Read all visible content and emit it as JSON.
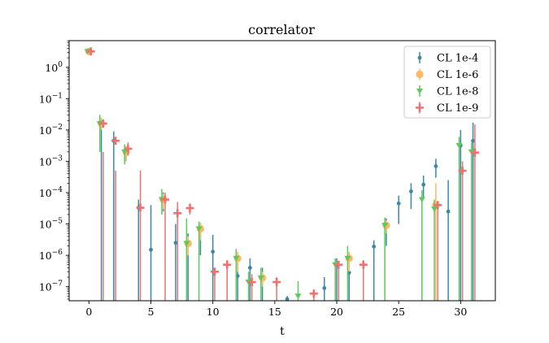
{
  "chart_data": {
    "type": "scatter",
    "title": "correlator",
    "xlabel": "t",
    "ylabel": "",
    "xlim": [
      -1.6,
      32.8
    ],
    "ylim_log10": [
      -7.45,
      0.85
    ],
    "yscale": "log",
    "grid": false,
    "legend_position": "top-right",
    "x_ticks": [
      0,
      5,
      10,
      15,
      20,
      25,
      30
    ],
    "x_tick_labels": [
      "0",
      "5",
      "10",
      "15",
      "20",
      "25",
      "30"
    ],
    "y_ticks_log10": [
      0,
      -1,
      -2,
      -3,
      -4,
      -5,
      -6,
      -7
    ],
    "y_tick_labels": [
      "10^0",
      "10^-1",
      "10^-2",
      "10^-3",
      "10^-4",
      "10^-5",
      "10^-6",
      "10^-7"
    ],
    "series": [
      {
        "name": "CL 1e-4",
        "color": "#3a88a8",
        "marker": "circle-small",
        "offset": 0.0,
        "points": [
          {
            "x": 0,
            "y": 3.2,
            "lo": 3.0,
            "hi": 3.4
          },
          {
            "x": 1,
            "y": 0.016,
            "lo": 1e-08,
            "hi": 0.02
          },
          {
            "x": 2,
            "y": 0.0045,
            "lo": 1e-08,
            "hi": 0.009
          },
          {
            "x": 3,
            "y": 0.002,
            "lo": 0.001,
            "hi": 0.003
          },
          {
            "x": 4,
            "y": 3.3e-05,
            "lo": 1e-08,
            "hi": 6e-05
          },
          {
            "x": 5,
            "y": 1.5e-06,
            "lo": 1e-08,
            "hi": 4e-05
          },
          {
            "x": 6,
            "y": 6e-05,
            "lo": 2.5e-05,
            "hi": 0.0001
          },
          {
            "x": 7,
            "y": 2.5e-06,
            "lo": 1e-08,
            "hi": 1e-05
          },
          {
            "x": 8,
            "y": 2.4e-06,
            "lo": 1e-08,
            "hi": 5e-06
          },
          {
            "x": 9,
            "y": 7e-06,
            "lo": 1e-06,
            "hi": 1e-05
          },
          {
            "x": 10,
            "y": 1.3e-06,
            "lo": 1e-08,
            "hi": 4.5e-06
          },
          {
            "x": 12,
            "y": 2.2e-07,
            "lo": 1e-08,
            "hi": 1e-06
          },
          {
            "x": 13,
            "y": 4e-07,
            "lo": 1e-08,
            "hi": 8e-07
          },
          {
            "x": 14,
            "y": 2e-07,
            "lo": 1e-08,
            "hi": 4e-07
          },
          {
            "x": 16,
            "y": 4e-08,
            "lo": 1e-08,
            "hi": 5e-08
          },
          {
            "x": 19,
            "y": 9e-08,
            "lo": 1e-08,
            "hi": 2e-07
          },
          {
            "x": 20,
            "y": 5e-07,
            "lo": 1e-08,
            "hi": 8e-07
          },
          {
            "x": 21,
            "y": 2.8e-07,
            "lo": 1e-08,
            "hi": 1e-06
          },
          {
            "x": 23,
            "y": 1.9e-06,
            "lo": 1e-08,
            "hi": 3e-06
          },
          {
            "x": 24,
            "y": 9e-06,
            "lo": 2e-06,
            "hi": 1.5e-05
          },
          {
            "x": 25,
            "y": 4.5e-05,
            "lo": 1e-05,
            "hi": 8e-05
          },
          {
            "x": 26,
            "y": 0.00011,
            "lo": 3e-05,
            "hi": 0.0002
          },
          {
            "x": 27,
            "y": 0.00018,
            "lo": 7e-05,
            "hi": 0.00035
          },
          {
            "x": 28,
            "y": 0.0007,
            "lo": 0.0003,
            "hi": 0.0012
          },
          {
            "x": 29,
            "y": 2.5e-05,
            "lo": 1e-08,
            "hi": 0.00025
          },
          {
            "x": 30,
            "y": 0.0032,
            "lo": 1e-08,
            "hi": 0.01
          },
          {
            "x": 31,
            "y": 0.0045,
            "lo": 1e-08,
            "hi": 0.017
          }
        ]
      },
      {
        "name": "CL 1e-6",
        "color": "#fdb863",
        "marker": "circle-large",
        "offset": 0.0,
        "points": [
          {
            "x": 0,
            "y": 3.2,
            "lo": 3.0,
            "hi": 3.4
          },
          {
            "x": 1,
            "y": 0.016,
            "lo": 0.01,
            "hi": 0.025
          },
          {
            "x": 3,
            "y": 0.002,
            "lo": 0.001,
            "hi": 0.003
          },
          {
            "x": 6,
            "y": 6e-05,
            "lo": 3e-05,
            "hi": 9e-05
          },
          {
            "x": 8,
            "y": 2.4e-06,
            "lo": 1e-06,
            "hi": 4e-06
          },
          {
            "x": 9,
            "y": 7e-06,
            "lo": 3e-06,
            "hi": 1.1e-05
          },
          {
            "x": 12,
            "y": 8e-07,
            "lo": 3e-07,
            "hi": 1.3e-06
          },
          {
            "x": 14,
            "y": 1.9e-07,
            "lo": 1e-07,
            "hi": 3e-07
          },
          {
            "x": 21,
            "y": 8e-07,
            "lo": 3e-07,
            "hi": 1.3e-06
          },
          {
            "x": 24,
            "y": 9e-06,
            "lo": 5e-06,
            "hi": 1.3e-05
          },
          {
            "x": 28,
            "y": 4e-05,
            "lo": 1e-08,
            "hi": 0.0002
          }
        ]
      },
      {
        "name": "CL 1e-8",
        "color": "#5bc95b",
        "marker": "triangle-down",
        "offset": -0.12,
        "points": [
          {
            "x": 0,
            "y": 3.2,
            "lo": 3.0,
            "hi": 3.4
          },
          {
            "x": 1,
            "y": 0.016,
            "lo": 0.002,
            "hi": 0.03
          },
          {
            "x": 3,
            "y": 0.002,
            "lo": 0.0008,
            "hi": 0.0035
          },
          {
            "x": 6,
            "y": 6e-05,
            "lo": 2e-05,
            "hi": 0.00013
          },
          {
            "x": 8,
            "y": 2.4e-06,
            "lo": 1e-08,
            "hi": 1.5e-05
          },
          {
            "x": 9,
            "y": 7e-06,
            "lo": 1e-08,
            "hi": 1.2e-05
          },
          {
            "x": 12,
            "y": 8e-07,
            "lo": 1e-08,
            "hi": 1.6e-06
          },
          {
            "x": 13,
            "y": 1.4e-07,
            "lo": 1e-08,
            "hi": 3e-07
          },
          {
            "x": 14,
            "y": 1.9e-07,
            "lo": 1e-08,
            "hi": 4e-07
          },
          {
            "x": 17,
            "y": 5e-08,
            "lo": 1e-08,
            "hi": 1.5e-07
          },
          {
            "x": 20,
            "y": 5e-07,
            "lo": 1e-08,
            "hi": 8e-07
          },
          {
            "x": 21,
            "y": 8e-07,
            "lo": 1e-08,
            "hi": 2e-06
          },
          {
            "x": 24,
            "y": 9e-06,
            "lo": 1e-08,
            "hi": 1.6e-05
          },
          {
            "x": 27,
            "y": 6e-05,
            "lo": 1e-08,
            "hi": 0.00012
          },
          {
            "x": 28,
            "y": 3e-05,
            "lo": 1e-08,
            "hi": 6e-05
          },
          {
            "x": 30,
            "y": 0.0032,
            "lo": 1e-08,
            "hi": 0.006
          },
          {
            "x": 31,
            "y": 0.002,
            "lo": 1e-08,
            "hi": 0.004
          }
        ]
      },
      {
        "name": "CL 1e-9",
        "color": "#f07070",
        "marker": "plus",
        "offset": 0.15,
        "points": [
          {
            "x": 0,
            "y": 3.2,
            "lo": 3.0,
            "hi": 3.4
          },
          {
            "x": 1,
            "y": 0.016,
            "lo": 1e-08,
            "hi": 0.002
          },
          {
            "x": 2,
            "y": 0.0045,
            "lo": 1e-08,
            "hi": 0.0005
          },
          {
            "x": 3,
            "y": 0.0025,
            "lo": 0.0015,
            "hi": 0.004
          },
          {
            "x": 4,
            "y": 3.3e-05,
            "lo": 1e-08,
            "hi": 0.0005
          },
          {
            "x": 6,
            "y": 6e-05,
            "lo": 1e-08,
            "hi": 0.0001
          },
          {
            "x": 7,
            "y": 2.2e-05,
            "lo": 1e-08,
            "hi": 5e-05
          },
          {
            "x": 8,
            "y": 3.2e-05,
            "lo": 2e-05,
            "hi": 4.5e-05
          },
          {
            "x": 10,
            "y": 3e-07,
            "lo": 1e-08,
            "hi": 3.5e-07
          },
          {
            "x": 11,
            "y": 5e-07,
            "lo": 1e-08,
            "hi": 7e-07
          },
          {
            "x": 13,
            "y": 1.4e-07,
            "lo": 1e-08,
            "hi": 2.5e-07
          },
          {
            "x": 15,
            "y": 1.4e-07,
            "lo": 1e-08,
            "hi": 2e-07
          },
          {
            "x": 18,
            "y": 6e-08,
            "lo": 1e-08,
            "hi": 8e-08
          },
          {
            "x": 20,
            "y": 5e-07,
            "lo": 1e-08,
            "hi": 6e-07
          },
          {
            "x": 22,
            "y": 5e-07,
            "lo": 1e-08,
            "hi": 7e-07
          },
          {
            "x": 28,
            "y": 4e-05,
            "lo": 1e-08,
            "hi": 5e-05
          },
          {
            "x": 30,
            "y": 0.0005,
            "lo": 1e-08,
            "hi": 0.001
          },
          {
            "x": 31,
            "y": 0.0019,
            "lo": 1e-08,
            "hi": 0.015
          }
        ]
      }
    ]
  }
}
